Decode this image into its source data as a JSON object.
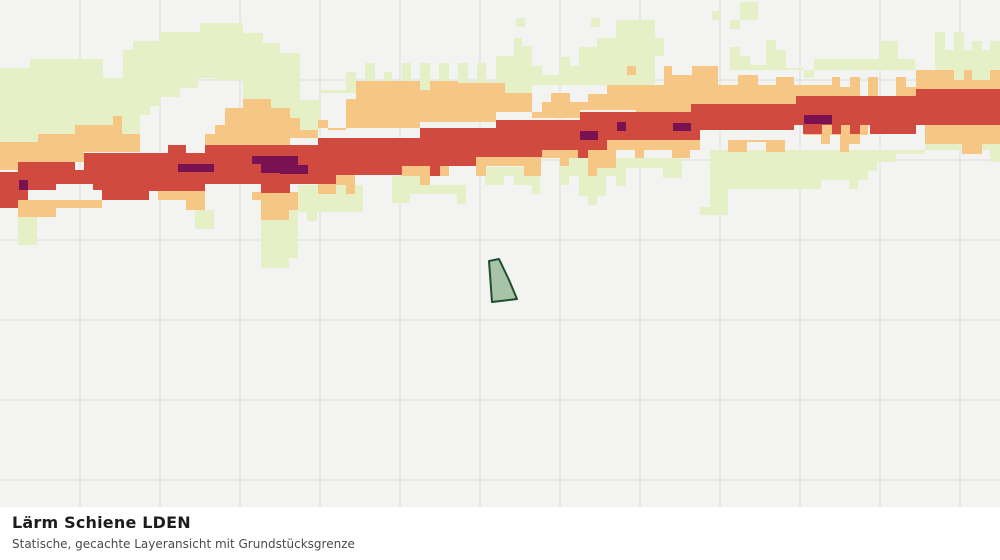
{
  "caption": {
    "title": "Lärm Schiene LDEN",
    "subtitle": "Statische, gecachte Layeransicht mit Grundstücksgrenze"
  },
  "map": {
    "layer": "Lärm Schiene LDEN",
    "noise_classes": [
      {
        "name": "lowest",
        "color": "#e6f0c6"
      },
      {
        "name": "low",
        "color": "#f5c684"
      },
      {
        "name": "high",
        "color": "#d04a40"
      },
      {
        "name": "highest",
        "color": "#7a1252"
      }
    ],
    "background_color": "#f3f4f1",
    "grid_color": "#dcdcda",
    "parcel": {
      "fill_color": "#a7c3a8",
      "stroke_color": "#1f4f2c"
    }
  }
}
